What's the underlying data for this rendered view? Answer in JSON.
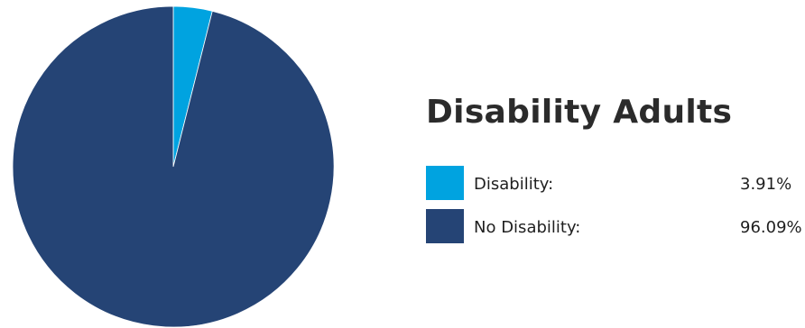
{
  "chart_data": {
    "type": "pie",
    "title": "Disability Adults",
    "slices": [
      {
        "label": "Disability:",
        "value": 3.91,
        "value_label": "3.91%",
        "color": "#00a3e0"
      },
      {
        "label": "No Disability:",
        "value": 96.09,
        "value_label": "96.09%",
        "color": "#254475"
      }
    ],
    "start_angle_deg": 0,
    "direction": "clockwise",
    "legend_position": "right"
  },
  "colors": {
    "background": "#ffffff",
    "slice_border": "#ffffff"
  }
}
